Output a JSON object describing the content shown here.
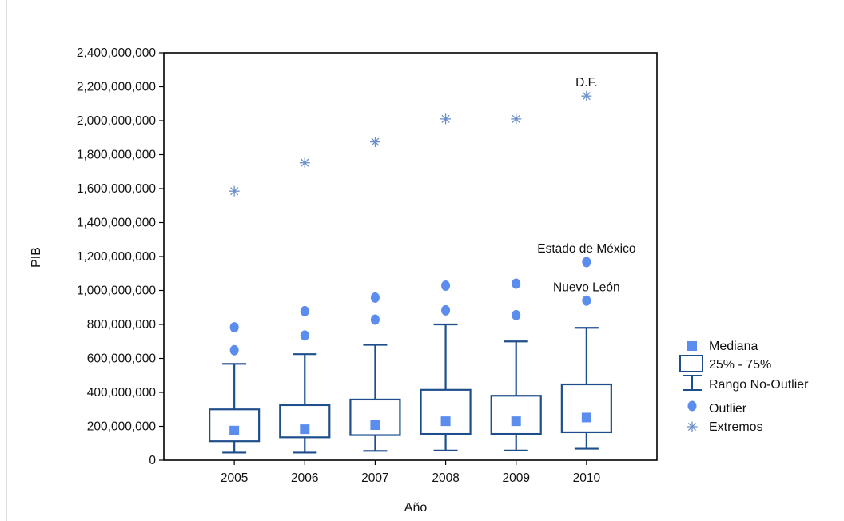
{
  "chart_data": {
    "type": "box",
    "xlabel": "Año",
    "ylabel": "PIB",
    "ylim": [
      0,
      2400000000
    ],
    "yticks": [
      0,
      200000000,
      400000000,
      600000000,
      800000000,
      1000000000,
      1200000000,
      1400000000,
      1600000000,
      1800000000,
      2000000000,
      2200000000,
      2400000000
    ],
    "ytick_labels": [
      "0",
      "200,000,000",
      "400,000,000",
      "600,000,000",
      "800,000,000",
      "1,000,000,000",
      "1,200,000,000",
      "1,400,000,000",
      "1,600,000,000",
      "1,800,000,000",
      "2,000,000,000",
      "2,200,000,000",
      "2,400,000,000"
    ],
    "categories": [
      "2005",
      "2006",
      "2007",
      "2008",
      "2009",
      "2010"
    ],
    "boxes": [
      {
        "median": 175000000,
        "q1": 112000000,
        "q3": 300000000,
        "whisker_low": 45000000,
        "whisker_high": 568000000,
        "outliers": [
          648000000,
          783000000
        ],
        "extremes": [
          1585000000
        ]
      },
      {
        "median": 183000000,
        "q1": 135000000,
        "q3": 325000000,
        "whisker_low": 45000000,
        "whisker_high": 625000000,
        "outliers": [
          735000000,
          878000000
        ],
        "extremes": [
          1752000000
        ]
      },
      {
        "median": 207000000,
        "q1": 148000000,
        "q3": 358000000,
        "whisker_low": 55000000,
        "whisker_high": 680000000,
        "outliers": [
          828000000,
          958000000
        ],
        "extremes": [
          1875000000
        ]
      },
      {
        "median": 230000000,
        "q1": 155000000,
        "q3": 415000000,
        "whisker_low": 57000000,
        "whisker_high": 800000000,
        "outliers": [
          883000000,
          1028000000
        ],
        "extremes": [
          2010000000
        ]
      },
      {
        "median": 230000000,
        "q1": 155000000,
        "q3": 380000000,
        "whisker_low": 57000000,
        "whisker_high": 700000000,
        "outliers": [
          855000000,
          1040000000
        ],
        "extremes": [
          2010000000
        ]
      },
      {
        "median": 252000000,
        "q1": 165000000,
        "q3": 447000000,
        "whisker_low": 68000000,
        "whisker_high": 780000000,
        "outliers": [
          940000000,
          1167000000
        ],
        "extremes": [
          2145000000
        ]
      }
    ],
    "annotations": [
      {
        "text": "D.F.",
        "category": "2010",
        "y": 2145000000
      },
      {
        "text": "Estado de México",
        "category": "2010",
        "y": 1167000000
      },
      {
        "text": "Nuevo León",
        "category": "2010",
        "y": 940000000
      }
    ],
    "legend": {
      "position": "right",
      "entries": [
        "Mediana",
        "25% - 75%",
        "Rango No-Outlier",
        "Outlier",
        "Extremos"
      ]
    },
    "colors": {
      "box": "#1f4e8c",
      "median": "#5b8def",
      "outlier": "#5b8def",
      "extreme": "#6a8fc8",
      "axis": "#000000"
    }
  }
}
